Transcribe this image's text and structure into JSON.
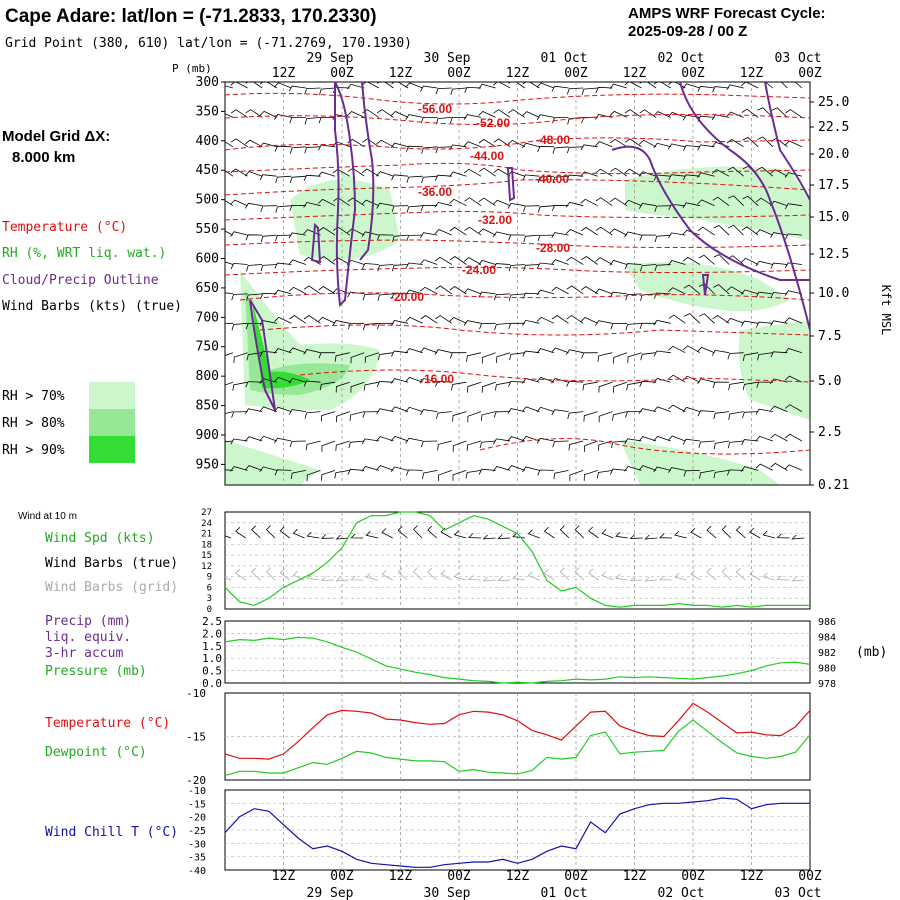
{
  "header": {
    "title": "Cape Adare:  lat/lon = (-71.2833, 170.2330)",
    "subtitle": "Grid Point (380, 610) lat/lon = (-71.2769, 170.1930)",
    "cycle_line1": "AMPS WRF Forecast Cycle:",
    "cycle_line2": "2025-09-28 / 00  Z"
  },
  "model_grid": {
    "line1": "Model Grid ΔX:",
    "line2": "8.000 km"
  },
  "legend_upper": {
    "temperature": "Temperature (°C)",
    "rh": "RH (%, WRT liq. wat.)",
    "cloud": "Cloud/Precip Outline",
    "wind": "Wind Barbs (kts) (true)"
  },
  "rh_legend": [
    {
      "label": "RH > 70%",
      "color": "#ccf7cc"
    },
    {
      "label": "RH > 80%",
      "color": "#96e896"
    },
    {
      "label": "RH > 90%",
      "color": "#33dd33"
    }
  ],
  "time_axis": {
    "hour_labels": [
      "12Z",
      "00Z",
      "12Z",
      "00Z",
      "12Z",
      "00Z",
      "12Z",
      "00Z",
      "12Z",
      "00Z"
    ],
    "date_labels": [
      "29 Sep",
      "30 Sep",
      "01 Oct",
      "02 Oct",
      "03 Oct"
    ]
  },
  "colors": {
    "temperature": "#dd1111",
    "rh_green": "#22cc22",
    "cloud": "#6a2c91",
    "wind_chill": "#1111aa",
    "grid_barb": "#aaaaaa"
  },
  "chart_data": [
    {
      "type": "heatmap",
      "name": "pressure-time cross section",
      "ylabel": "P (mb)",
      "y_right_label": "Kft MSL",
      "pressure_ticks": [
        300,
        350,
        400,
        450,
        500,
        550,
        600,
        650,
        700,
        750,
        800,
        850,
        900,
        950
      ],
      "height_ticks": [
        "25.0",
        "22.5",
        "20.0",
        "17.5",
        "15.0",
        "12.5",
        "10.0",
        "7.5",
        "5.0",
        "2.5",
        "0.21"
      ],
      "temperature_contour_labels": [
        "-56.00",
        "-52.00",
        "-48.00",
        "-44.00",
        "-40.00",
        "-36.00",
        "-32.00",
        "-28.00",
        "-24.00",
        "-20.00",
        "-16.00"
      ]
    },
    {
      "type": "line",
      "name": "wind at 10 m",
      "panel_title": "Wind at 10 m",
      "labels": {
        "speed": "Wind Spd (kts)",
        "barbs_true": "Wind Barbs (true)",
        "barbs_grid": "Wind Barbs (grid)"
      },
      "y_ticks": [
        0,
        3,
        6,
        9,
        12,
        15,
        18,
        21,
        24,
        27
      ],
      "ylim": [
        0,
        27
      ],
      "x_hours": [
        0,
        3,
        6,
        9,
        12,
        15,
        18,
        21,
        24,
        27,
        30,
        33,
        36,
        39,
        42,
        45,
        48,
        51,
        54,
        57,
        60,
        63,
        66,
        69,
        72,
        75,
        78,
        81,
        84,
        87,
        90,
        93,
        96,
        99,
        102,
        105,
        108,
        111,
        114,
        117,
        120
      ],
      "values": [
        6,
        2,
        1,
        3,
        6,
        8,
        10,
        13,
        17,
        24,
        26,
        26,
        27,
        27,
        26,
        22,
        24,
        26,
        25,
        23,
        21,
        16,
        8,
        5,
        6,
        3,
        1,
        0.5,
        1,
        1,
        1,
        1.5,
        1,
        1,
        0.5,
        1,
        0.5,
        1,
        1,
        1,
        1
      ]
    },
    {
      "type": "line",
      "name": "precip and pressure",
      "labels": {
        "precip": "Precip (mm)",
        "liq": "liq. equiv.",
        "accum": "3-hr accum",
        "pressure": "Pressure (mb)"
      },
      "y_ticks_left": [
        "0.0",
        "0.5",
        "1.0",
        "1.5",
        "2.0",
        "2.5"
      ],
      "y_ticks_right": [
        "978",
        "980",
        "982",
        "984",
        "986"
      ],
      "y_right_unit": "(mb)",
      "pressure_ylim": [
        978,
        986
      ],
      "pressure_values": [
        983.3,
        983.6,
        983.5,
        983.8,
        983.6,
        983.9,
        983.8,
        983.3,
        982.6,
        982,
        981.1,
        980.2,
        979.8,
        979.4,
        979.1,
        978.7,
        978.5,
        978.3,
        978.2,
        978,
        978.1,
        978,
        978.2,
        978.3,
        978.5,
        978.4,
        978.5,
        978.8,
        978.7,
        978.8,
        978.7,
        978.6,
        978.5,
        978.7,
        978.9,
        979.2,
        979.6,
        980.2,
        980.6,
        980.7,
        980.4
      ]
    },
    {
      "type": "line",
      "name": "temperature and dewpoint",
      "labels": {
        "temperature": "Temperature (°C)",
        "dewpoint": "Dewpoint (°C)"
      },
      "y_ticks": [
        "-10",
        "-15",
        "-20"
      ],
      "ylim": [
        -20,
        -10
      ],
      "temperature_values": [
        -17,
        -17.5,
        -17.5,
        -17.6,
        -17,
        -15.6,
        -14,
        -12.5,
        -12,
        -12.1,
        -12.3,
        -13,
        -13.1,
        -13.4,
        -13.6,
        -13.5,
        -12.5,
        -12.1,
        -12.2,
        -12.5,
        -13.2,
        -14.3,
        -14.8,
        -15.4,
        -13.8,
        -12.2,
        -12.1,
        -13.8,
        -14.4,
        -14.9,
        -15,
        -13.2,
        -11.2,
        -12.2,
        -13.4,
        -14.6,
        -14.5,
        -14.8,
        -14.9,
        -13.9,
        -12
      ],
      "dewpoint_values": [
        -19.5,
        -19,
        -19,
        -19.2,
        -19.2,
        -18.6,
        -18,
        -18.2,
        -17.5,
        -16.7,
        -16.9,
        -17.4,
        -17.6,
        -17.8,
        -17.8,
        -17.9,
        -19,
        -18.8,
        -19.1,
        -19.2,
        -19.3,
        -18.9,
        -17.4,
        -17.6,
        -17.4,
        -14.9,
        -14.5,
        -17,
        -16.8,
        -16.7,
        -16.6,
        -14.4,
        -13.1,
        -14.4,
        -15.7,
        -16.9,
        -17.3,
        -17.5,
        -17.3,
        -16.8,
        -14.8
      ]
    },
    {
      "type": "line",
      "name": "wind chill",
      "labels": {
        "wind_chill": "Wind Chill T (°C)"
      },
      "y_ticks": [
        "-10",
        "-15",
        "-20",
        "-25",
        "-30",
        "-35",
        "-40"
      ],
      "ylim": [
        -40,
        -10
      ],
      "values": [
        -26,
        -20,
        -17,
        -18,
        -23,
        -28,
        -32,
        -31,
        -33,
        -36,
        -37.5,
        -38,
        -38.5,
        -39,
        -39,
        -38,
        -37.5,
        -37,
        -37,
        -36,
        -37.5,
        -36,
        -33,
        -31,
        -32,
        -22,
        -26,
        -19,
        -17,
        -15.5,
        -15,
        -15,
        -14.5,
        -14,
        -13,
        -13.5,
        -17,
        -15.5,
        -15,
        -15,
        -15
      ]
    }
  ]
}
